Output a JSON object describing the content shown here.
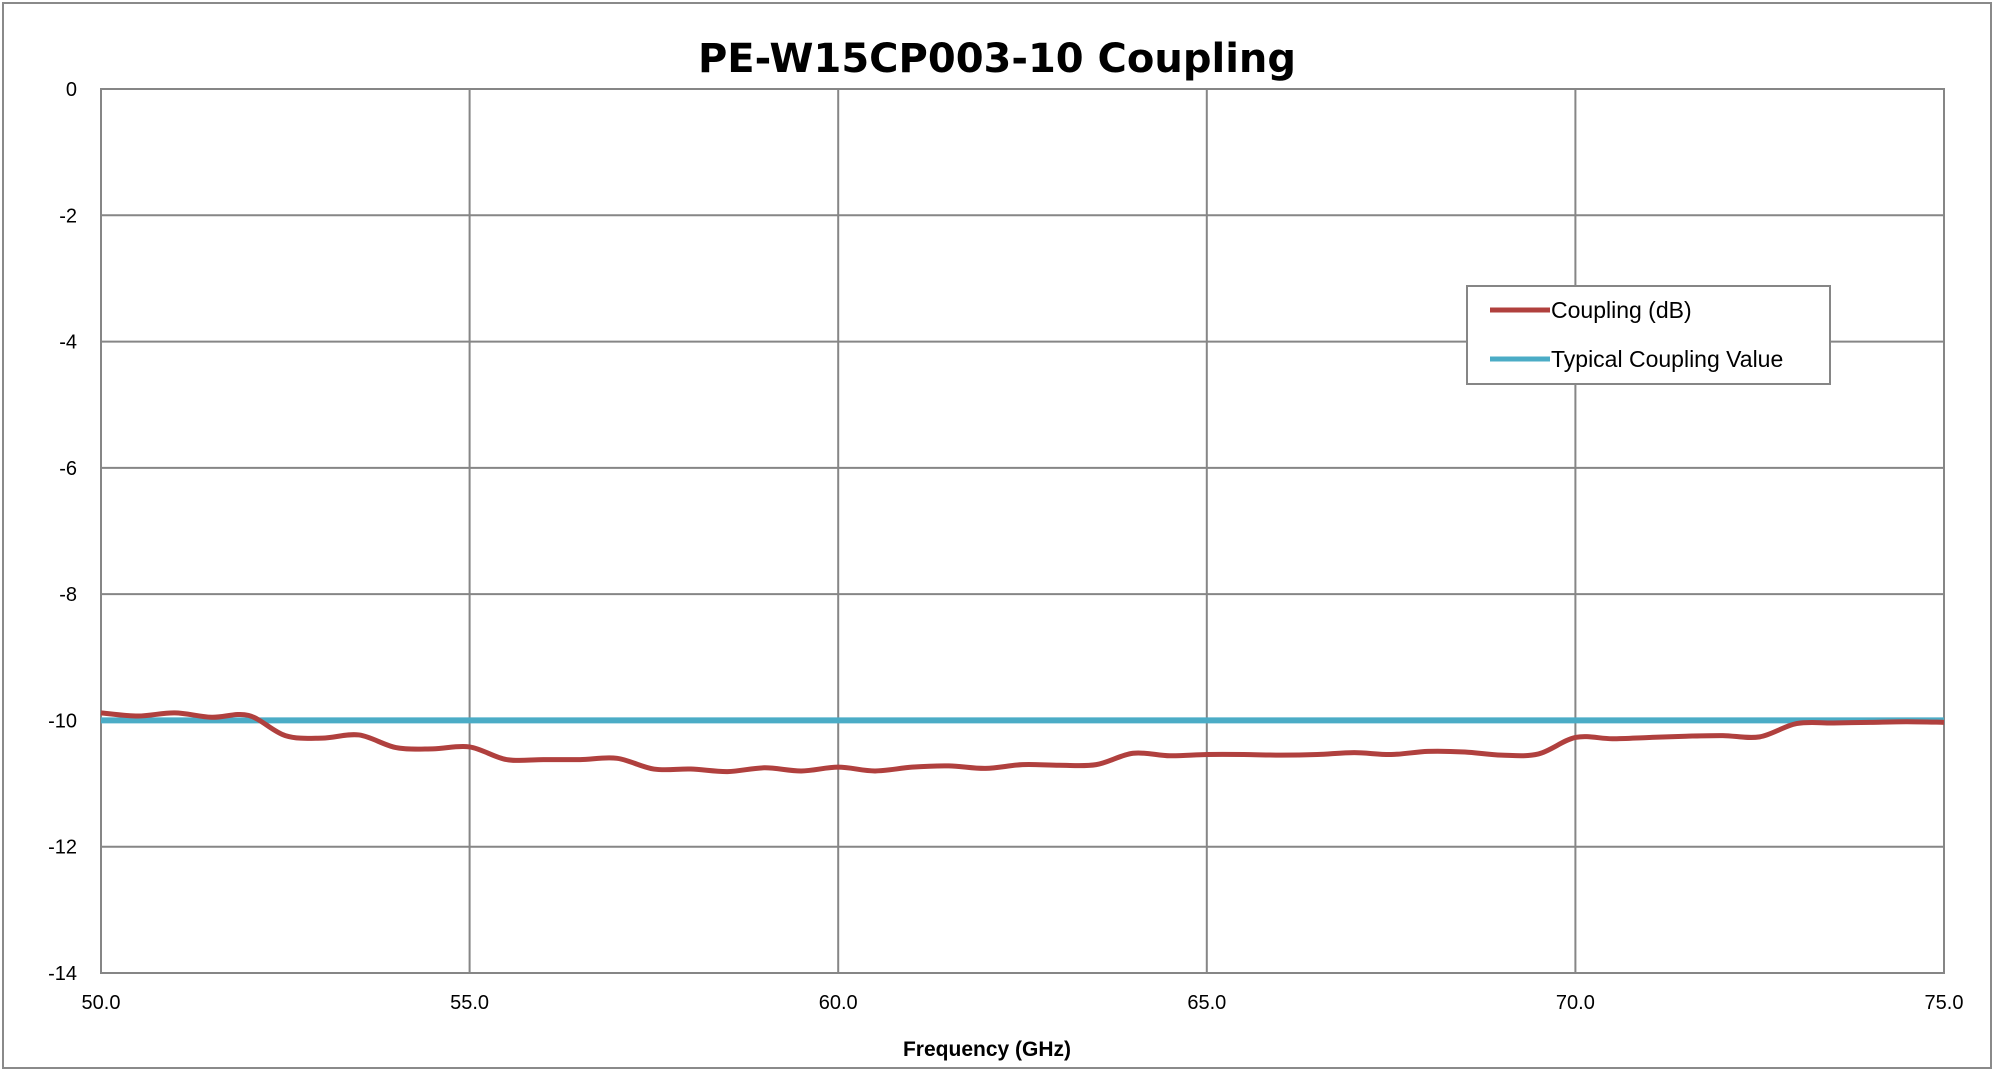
{
  "chart_data": {
    "type": "line",
    "title": "PE-W15CP003-10 Coupling",
    "xlabel": "Frequency (GHz)",
    "ylabel": "",
    "xlim": [
      50,
      75
    ],
    "ylim": [
      -14,
      0
    ],
    "x_ticks": [
      "50.0",
      "55.0",
      "60.0",
      "65.0",
      "70.0",
      "75.0"
    ],
    "y_ticks": [
      "0",
      "-2",
      "-4",
      "-6",
      "-8",
      "-10",
      "-12",
      "-14"
    ],
    "grid": true,
    "legend_position": "top-right",
    "series": [
      {
        "name": "Coupling (dB)",
        "color": "#b0403e",
        "x": [
          50.0,
          50.5,
          51.0,
          51.5,
          52.0,
          52.5,
          53.0,
          53.5,
          54.0,
          54.5,
          55.0,
          55.5,
          56.0,
          56.5,
          57.0,
          57.5,
          58.0,
          58.5,
          59.0,
          59.5,
          60.0,
          60.5,
          61.0,
          61.5,
          62.0,
          62.5,
          63.0,
          63.5,
          64.0,
          64.5,
          65.0,
          65.5,
          66.0,
          66.5,
          67.0,
          67.5,
          68.0,
          68.5,
          69.0,
          69.5,
          70.0,
          70.5,
          71.0,
          71.5,
          72.0,
          72.5,
          73.0,
          73.5,
          74.0,
          74.5,
          75.0
        ],
        "y": [
          -9.88,
          -9.93,
          -9.88,
          -9.95,
          -9.92,
          -10.24,
          -10.28,
          -10.23,
          -10.43,
          -10.45,
          -10.42,
          -10.62,
          -10.62,
          -10.62,
          -10.6,
          -10.77,
          -10.77,
          -10.81,
          -10.75,
          -10.8,
          -10.74,
          -10.8,
          -10.74,
          -10.72,
          -10.76,
          -10.7,
          -10.71,
          -10.7,
          -10.52,
          -10.56,
          -10.54,
          -10.54,
          -10.55,
          -10.54,
          -10.51,
          -10.54,
          -10.49,
          -10.5,
          -10.55,
          -10.53,
          -10.27,
          -10.29,
          -10.27,
          -10.25,
          -10.24,
          -10.26,
          -10.05,
          -10.04,
          -10.03,
          -10.02,
          -10.03
        ]
      },
      {
        "name": "Typical Coupling Value",
        "color": "#4bacc6",
        "x": [
          50.0,
          75.0
        ],
        "y": [
          -10.0,
          -10.0
        ]
      }
    ]
  }
}
